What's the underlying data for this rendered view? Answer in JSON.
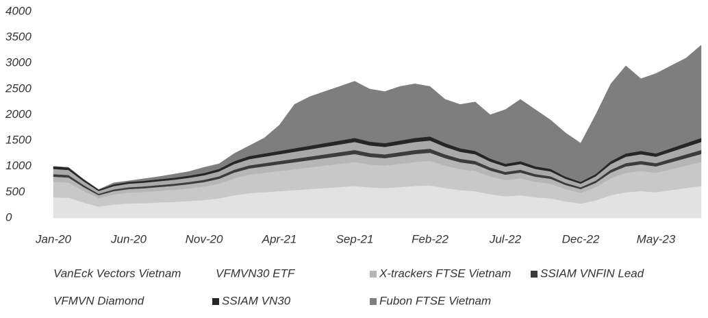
{
  "chart_data": {
    "type": "stacked_area",
    "categories": [
      "Jan-20",
      null,
      null,
      null,
      null,
      "Jun-20",
      null,
      null,
      null,
      null,
      "Nov-20",
      null,
      null,
      null,
      null,
      "Apr-21",
      null,
      null,
      null,
      null,
      "Sep-21",
      null,
      null,
      null,
      null,
      "Feb-22",
      null,
      null,
      null,
      null,
      "Jul-22",
      null,
      null,
      null,
      null,
      "Dec-22",
      null,
      null,
      null,
      null,
      "May-23",
      null,
      null,
      null
    ],
    "series": [
      {
        "name": "VanEck Vectors Vietnam",
        "color": "#e2e2e2",
        "values": [
          400,
          392,
          300,
          220,
          260,
          280,
          288,
          300,
          312,
          328,
          348,
          380,
          440,
          480,
          500,
          520,
          540,
          560,
          580,
          600,
          620,
          592,
          580,
          600,
          620,
          632,
          580,
          540,
          520,
          460,
          420,
          440,
          400,
          380,
          320,
          280,
          340,
          440,
          500,
          520,
          500,
          540,
          580,
          620
        ]
      },
      {
        "name": "VFMVN30 ETF",
        "color": "#c8c8c8",
        "values": [
          300,
          294,
          225,
          165,
          195,
          210,
          216,
          225,
          234,
          246,
          261,
          285,
          330,
          360,
          375,
          390,
          405,
          420,
          435,
          450,
          465,
          444,
          435,
          450,
          465,
          474,
          435,
          405,
          390,
          345,
          315,
          330,
          300,
          285,
          240,
          210,
          255,
          330,
          375,
          390,
          375,
          405,
          435,
          465
        ]
      },
      {
        "name": "X-trackers FTSE Vietnam",
        "color": "#b6b6b6",
        "values": [
          100,
          98,
          75,
          55,
          65,
          70,
          72,
          75,
          78,
          82,
          87,
          95,
          110,
          120,
          125,
          130,
          135,
          140,
          145,
          150,
          155,
          148,
          145,
          150,
          155,
          158,
          145,
          135,
          130,
          115,
          105,
          110,
          100,
          95,
          80,
          70,
          85,
          110,
          125,
          130,
          125,
          135,
          145,
          155
        ]
      },
      {
        "name": "SSIAM VNFIN Lead",
        "color": "#3c3c3c",
        "values": [
          50,
          49,
          38,
          28,
          33,
          35,
          36,
          38,
          39,
          41,
          44,
          48,
          55,
          60,
          63,
          65,
          68,
          70,
          73,
          75,
          78,
          74,
          73,
          75,
          78,
          79,
          73,
          68,
          65,
          58,
          53,
          55,
          50,
          48,
          40,
          35,
          43,
          55,
          63,
          65,
          63,
          68,
          73,
          78
        ]
      },
      {
        "name": "VFMVN Diamond",
        "color": "#a9a9a9",
        "values": [
          100,
          98,
          75,
          55,
          65,
          70,
          72,
          75,
          78,
          82,
          87,
          95,
          110,
          120,
          125,
          130,
          135,
          140,
          145,
          150,
          155,
          148,
          145,
          150,
          155,
          158,
          145,
          135,
          130,
          115,
          105,
          110,
          100,
          95,
          80,
          70,
          85,
          110,
          125,
          130,
          125,
          135,
          145,
          155
        ]
      },
      {
        "name": "SSIAM VN30",
        "color": "#262626",
        "values": [
          50,
          49,
          38,
          28,
          33,
          35,
          36,
          38,
          39,
          41,
          44,
          48,
          55,
          60,
          63,
          65,
          68,
          70,
          73,
          75,
          78,
          74,
          73,
          75,
          78,
          79,
          73,
          68,
          65,
          58,
          53,
          55,
          50,
          48,
          40,
          35,
          43,
          55,
          63,
          65,
          63,
          68,
          73,
          78
        ]
      },
      {
        "name": "Fubon FTSE Vietnam",
        "color": "#7e7e7e",
        "values": [
          0,
          0,
          0,
          0,
          30,
          20,
          40,
          50,
          70,
          80,
          110,
          100,
          150,
          200,
          300,
          500,
          850,
          950,
          1000,
          1050,
          1100,
          1020,
          1000,
          1050,
          1050,
          970,
          850,
          850,
          950,
          850,
          1050,
          1200,
          1100,
          950,
          850,
          750,
          1150,
          1500,
          1700,
          1400,
          1550,
          1600,
          1650,
          1800
        ]
      }
    ],
    "ylim": [
      0,
      4000
    ],
    "yticks": [
      0,
      500,
      1000,
      1500,
      2000,
      2500,
      3000,
      3500,
      4000
    ]
  }
}
